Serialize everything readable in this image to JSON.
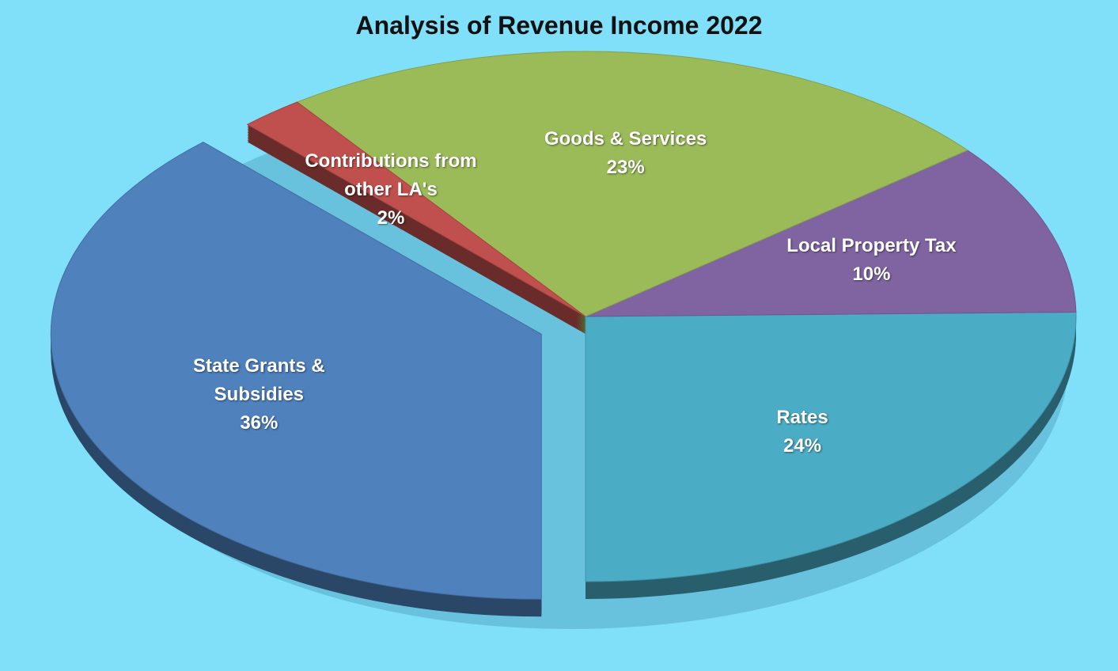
{
  "chart_data": {
    "type": "pie",
    "title": "Analysis of Revenue Income 2022",
    "categories": [
      "Rates",
      "Local Property Tax",
      "Goods & Services",
      "Contributions from other LA's",
      "State Grants & Subsidies"
    ],
    "values": [
      24,
      10,
      23,
      2,
      36
    ],
    "value_labels": [
      "24%",
      "10%",
      "23%",
      "2%",
      "36%"
    ],
    "colors": [
      "#4bacc6",
      "#8064a2",
      "#9bbb59",
      "#c0504d",
      "#4f81bd"
    ],
    "exploded": "State Grants & Subsidies"
  }
}
